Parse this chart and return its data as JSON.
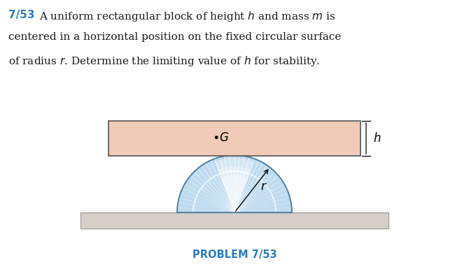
{
  "title_number": "7/53",
  "title_color": "#2E7BBF",
  "problem_label": "PROBLEM 7/53",
  "problem_label_color": "#2E7BBF",
  "background": "#ffffff",
  "rect_fill": "#EFCBB8",
  "rect_edge": "#555555",
  "ground_fill": "#D5CFC8",
  "ground_edge": "#999999",
  "light_blue_fill": "#B8D8EE",
  "dark_blue_edge": "#5080A0",
  "fan_color": "#DAEEF8",
  "text_color": "#1a1a1a"
}
